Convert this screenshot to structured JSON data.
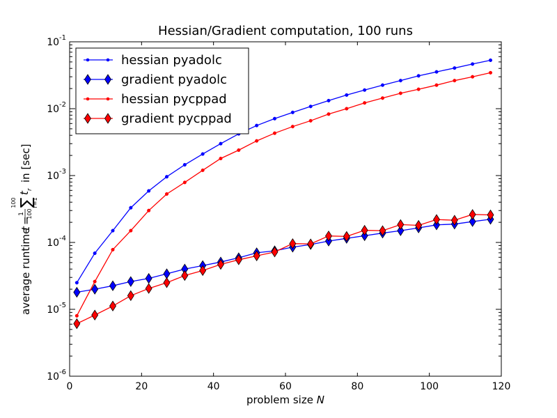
{
  "chart_data": {
    "type": "line",
    "title": "Hessian/Gradient computation, 100 runs",
    "xlabel": "problem size N",
    "ylabel": "average runtime t = (1/100) Σ_{r=1}^{100} t_r in [sec]",
    "ylabel_parts": {
      "prefix": "average runtime",
      "t": "t",
      "eq": "=",
      "num": "1",
      "den": "100",
      "sum": "∑",
      "sup": "100",
      "sub": "r=1",
      "tr": "t",
      "tr_sub": "r",
      "suffix": "in [sec]"
    },
    "xlim": [
      0,
      120
    ],
    "ylim": [
      1e-06,
      0.1
    ],
    "yscale": "log",
    "grid": false,
    "legend_position": "top-left",
    "x_ticks": [
      "0",
      "20",
      "40",
      "60",
      "80",
      "100",
      "120"
    ],
    "y_ticks": [
      {
        "base": "10",
        "exp": "-6"
      },
      {
        "base": "10",
        "exp": "-5"
      },
      {
        "base": "10",
        "exp": "-4"
      },
      {
        "base": "10",
        "exp": "-3"
      },
      {
        "base": "10",
        "exp": "-2"
      },
      {
        "base": "10",
        "exp": "-1"
      }
    ],
    "x": [
      2,
      7,
      12,
      17,
      22,
      27,
      32,
      37,
      42,
      47,
      52,
      57,
      62,
      67,
      72,
      77,
      82,
      87,
      92,
      97,
      102,
      107,
      112,
      117
    ],
    "series": [
      {
        "name": "hessian pyadolc",
        "color": "#0000ff",
        "marker": "dot",
        "values": [
          2.5e-05,
          6.9e-05,
          0.00015,
          0.00033,
          0.00059,
          0.00096,
          0.00145,
          0.0021,
          0.003,
          0.0042,
          0.0056,
          0.0071,
          0.0088,
          0.0108,
          0.0132,
          0.016,
          0.019,
          0.0225,
          0.0263,
          0.031,
          0.0355,
          0.0405,
          0.0465,
          0.053
        ]
      },
      {
        "name": "gradient pyadolc",
        "color": "#0000ff",
        "marker": "diamond",
        "values": [
          1.8e-05,
          2e-05,
          2.25e-05,
          2.6e-05,
          2.9e-05,
          3.4e-05,
          4e-05,
          4.5e-05,
          5.1e-05,
          5.9e-05,
          7e-05,
          7.5e-05,
          8.5e-05,
          9.3e-05,
          0.000105,
          0.000115,
          0.000126,
          0.000138,
          0.00015,
          0.000165,
          0.000183,
          0.000188,
          0.000205,
          0.000222
        ]
      },
      {
        "name": "hessian pycppad",
        "color": "#ff0000",
        "marker": "dot",
        "values": [
          8e-06,
          2.6e-05,
          7.8e-05,
          0.00015,
          0.0003,
          0.00053,
          0.00079,
          0.0012,
          0.0018,
          0.0024,
          0.0033,
          0.0043,
          0.0054,
          0.0066,
          0.0083,
          0.01,
          0.0122,
          0.0144,
          0.017,
          0.0195,
          0.0225,
          0.0263,
          0.03,
          0.0345
        ]
      },
      {
        "name": "gradient pycppad",
        "color": "#ff0000",
        "marker": "diamond",
        "values": [
          6.1e-06,
          8.2e-06,
          1.12e-05,
          1.6e-05,
          2.05e-05,
          2.5e-05,
          3.2e-05,
          3.8e-05,
          4.7e-05,
          5.5e-05,
          6.3e-05,
          7.2e-05,
          9.6e-05,
          9.5e-05,
          0.000125,
          0.000123,
          0.000152,
          0.00015,
          0.000185,
          0.00018,
          0.00022,
          0.000215,
          0.000262,
          0.000258
        ]
      }
    ]
  }
}
